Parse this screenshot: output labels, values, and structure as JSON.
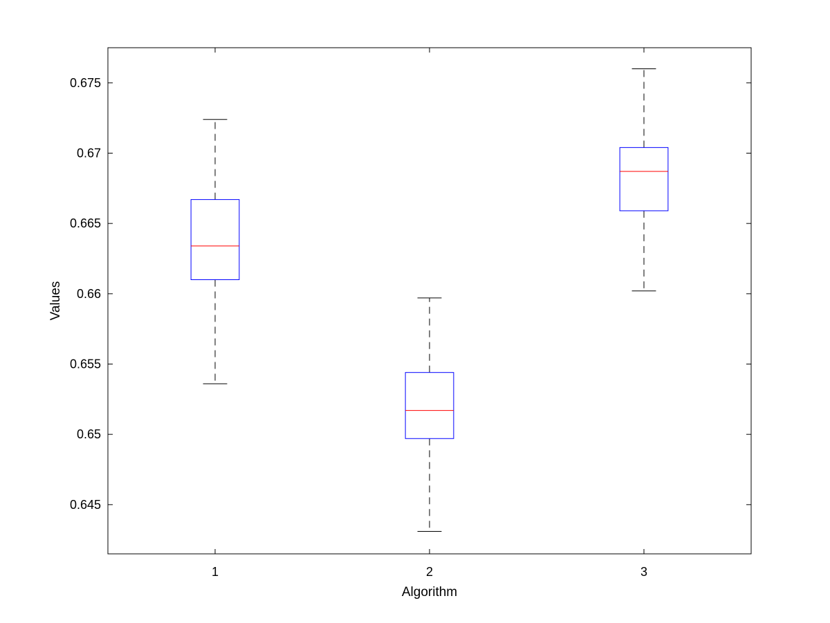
{
  "chart_data": {
    "type": "boxplot",
    "title": "",
    "xlabel": "Algorithm",
    "ylabel": "Values",
    "ylim": [
      0.6415,
      0.6775
    ],
    "y_ticks": [
      0.645,
      0.65,
      0.655,
      0.66,
      0.665,
      0.67,
      0.675
    ],
    "y_tick_labels": [
      "0.645",
      "0.65",
      "0.655",
      "0.66",
      "0.665",
      "0.67",
      "0.675"
    ],
    "categories": [
      "1",
      "2",
      "3"
    ],
    "boxes": [
      {
        "category": "1",
        "whisker_low": 0.6536,
        "q1": 0.661,
        "median": 0.6634,
        "q3": 0.6667,
        "whisker_high": 0.6724
      },
      {
        "category": "2",
        "whisker_low": 0.6431,
        "q1": 0.6497,
        "median": 0.6517,
        "q3": 0.6544,
        "whisker_high": 0.6597
      },
      {
        "category": "3",
        "whisker_low": 0.6602,
        "q1": 0.6659,
        "median": 0.6687,
        "q3": 0.6704,
        "whisker_high": 0.676
      }
    ],
    "grid": false,
    "legend": "none",
    "colors": {
      "box": "#0000ff",
      "median": "#ff0000",
      "whisker": "#000000",
      "axes": "#000000"
    }
  }
}
